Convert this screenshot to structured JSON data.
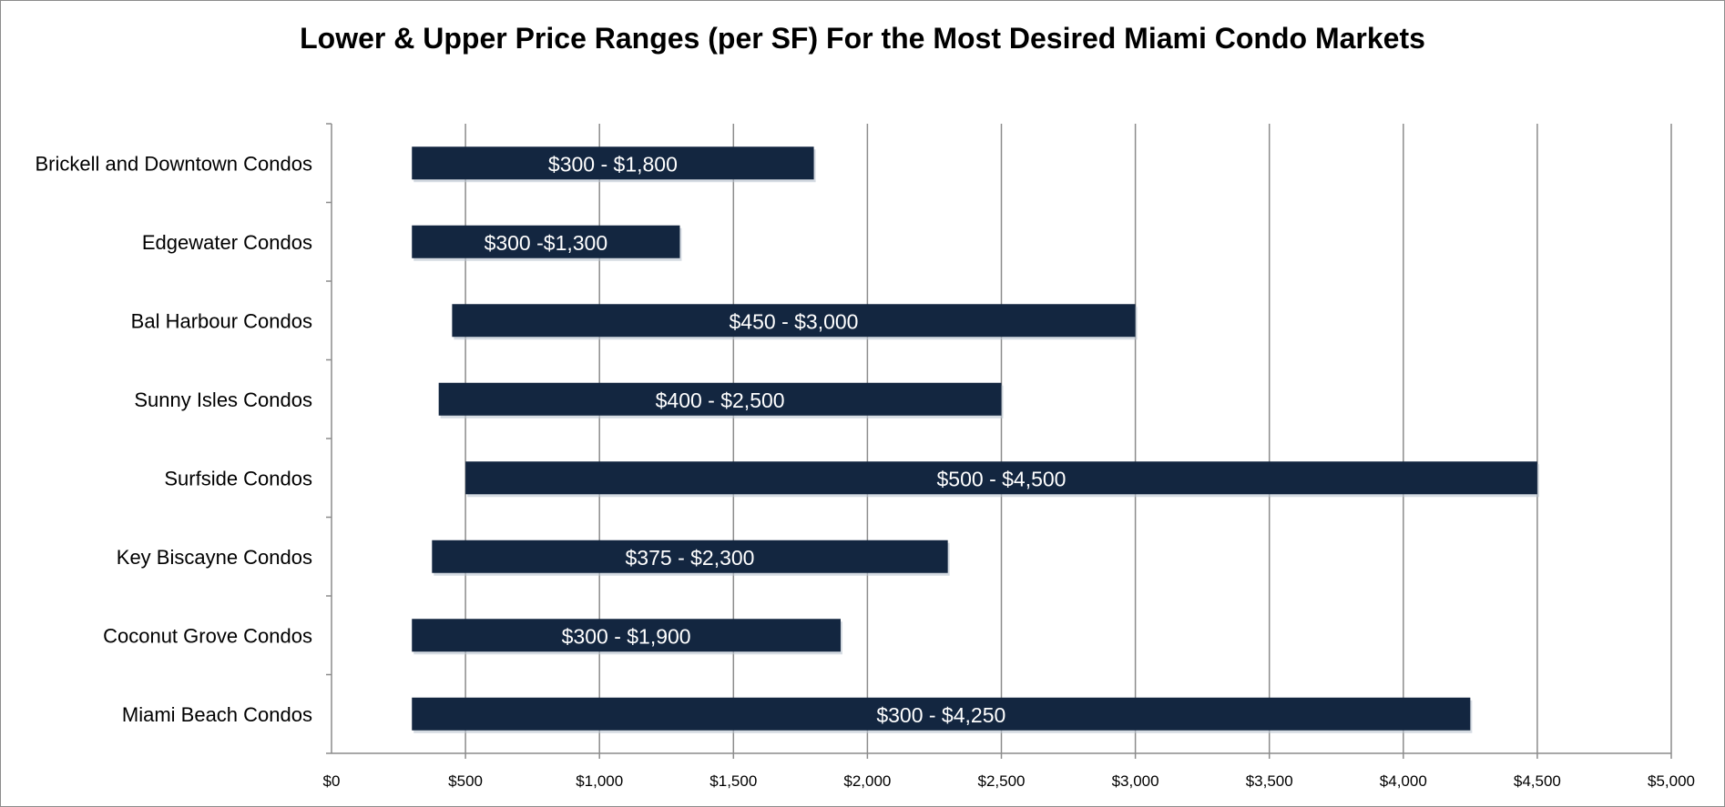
{
  "chart_data": {
    "type": "bar",
    "orientation": "horizontal",
    "subtype": "floating-range",
    "title": "Lower & Upper Price Ranges (per SF) For the Most Desired Miami Condo Markets",
    "xlabel": "",
    "ylabel": "",
    "xlim": [
      0,
      5000
    ],
    "x_ticks": [
      0,
      500,
      1000,
      1500,
      2000,
      2500,
      3000,
      3500,
      4000,
      4500,
      5000
    ],
    "x_tick_labels": [
      "$0",
      "$500",
      "$1,000",
      "$1,500",
      "$2,000",
      "$2,500",
      "$3,000",
      "$3,500",
      "$4,000",
      "$4,500",
      "$5,000"
    ],
    "grid": "vertical",
    "legend": "none",
    "bar_color": "#132640",
    "categories": [
      "Brickell and Downtown Condos",
      "Edgewater Condos",
      "Bal Harbour Condos",
      "Sunny Isles Condos",
      "Surfside Condos",
      "Key Biscayne Condos",
      "Coconut Grove Condos",
      "Miami Beach Condos"
    ],
    "series": [
      {
        "name": "Lower",
        "values": [
          300,
          300,
          450,
          400,
          500,
          375,
          300,
          300
        ]
      },
      {
        "name": "Upper",
        "values": [
          1800,
          1300,
          3000,
          2500,
          4500,
          2300,
          1900,
          4250
        ]
      }
    ],
    "data_labels": [
      "$300 - $1,800",
      "$300 -$1,300",
      "$450 - $3,000",
      "$400 - $2,500",
      "$500 - $4,500",
      "$375 - $2,300",
      "$300 - $1,900",
      "$300 - $4,250"
    ]
  }
}
